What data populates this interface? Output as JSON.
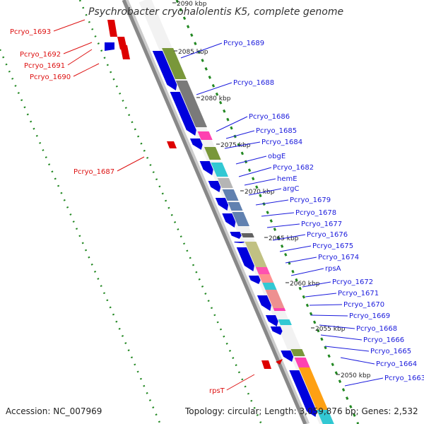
{
  "title": "Psychrobacter cryohalolentis K5, complete genome",
  "accession_text": "Accession: NC_007969",
  "topology_text": "Topology: circular; Length: 3,059,876 bp; Genes: 2,532",
  "colors": {
    "forward_gene": "#0000dd",
    "reverse_gene": "#dd0000",
    "forward_label": "#1a1adc",
    "reverse_label": "#dd1111",
    "backbone": "#888888",
    "tick_green": "#228822"
  },
  "kbp_markers": [
    "2090 kbp",
    "2085 kbp",
    "2080 kbp",
    "2075 kbp",
    "2070 kbp",
    "2065 kbp",
    "2060 kbp",
    "2055 kbp",
    "2050 kbp"
  ],
  "forward_gene_labels": [
    "Pcryo_1689",
    "Pcryo_1688",
    "Pcryo_1686",
    "Pcryo_1685",
    "Pcryo_1684",
    "obgE",
    "Pcryo_1682",
    "hemE",
    "argC",
    "Pcryo_1679",
    "Pcryo_1678",
    "Pcryo_1677",
    "Pcryo_1676",
    "Pcryo_1675",
    "Pcryo_1674",
    "rpsA",
    "Pcryo_1672",
    "Pcryo_1671",
    "Pcryo_1670",
    "Pcryo_1669",
    "Pcryo_1668",
    "Pcryo_1666",
    "Pcryo_1665",
    "Pcryo_1664",
    "Pcryo_1663"
  ],
  "reverse_gene_labels": [
    "Pcryo_1693",
    "Pcryo_1692",
    "Pcryo_1691",
    "Pcryo_1690",
    "Pcryo_1687",
    "rpsT"
  ]
}
